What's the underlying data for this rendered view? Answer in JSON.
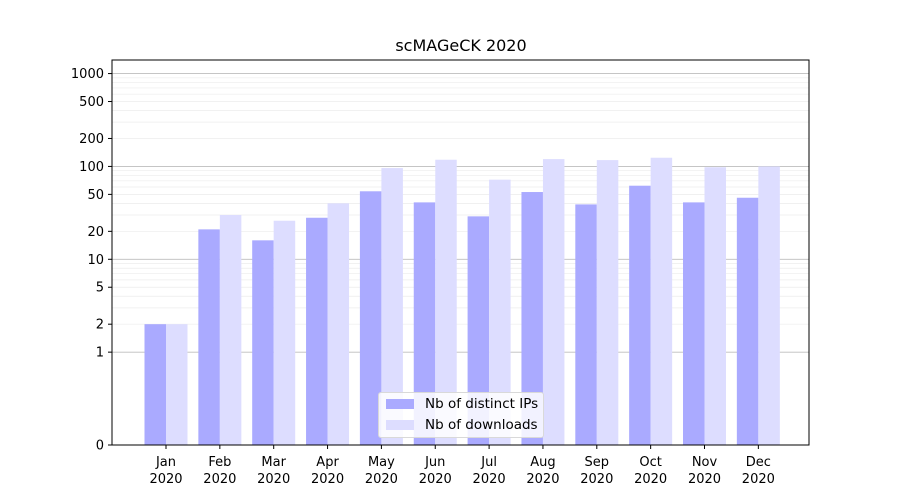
{
  "chart_data": {
    "type": "bar",
    "title": "scMAGeCK 2020",
    "xlabel": "",
    "ylabel": "",
    "yscale": "symlog",
    "ylim": [
      0,
      1400
    ],
    "yticks": [
      0,
      1,
      2,
      5,
      10,
      20,
      50,
      100,
      200,
      500,
      1000
    ],
    "ytick_labels": [
      "0",
      "1",
      "2",
      "5",
      "10",
      "20",
      "50",
      "100",
      "200",
      "500",
      "1000"
    ],
    "categories": [
      "Jan\n2020",
      "Feb\n2020",
      "Mar\n2020",
      "Apr\n2020",
      "May\n2020",
      "Jun\n2020",
      "Jul\n2020",
      "Aug\n2020",
      "Sep\n2020",
      "Oct\n2020",
      "Nov\n2020",
      "Dec\n2020"
    ],
    "series": [
      {
        "name": "Nb of distinct IPs",
        "color": "#aaaaff",
        "values": [
          2,
          21,
          16,
          28,
          54,
          41,
          29,
          53,
          39,
          62,
          41,
          46
        ]
      },
      {
        "name": "Nb of downloads",
        "color": "#ddddff",
        "values": [
          2,
          30,
          26,
          40,
          96,
          118,
          72,
          120,
          117,
          124,
          98,
          100
        ]
      }
    ],
    "legend_position": "lower center",
    "grid": true
  }
}
